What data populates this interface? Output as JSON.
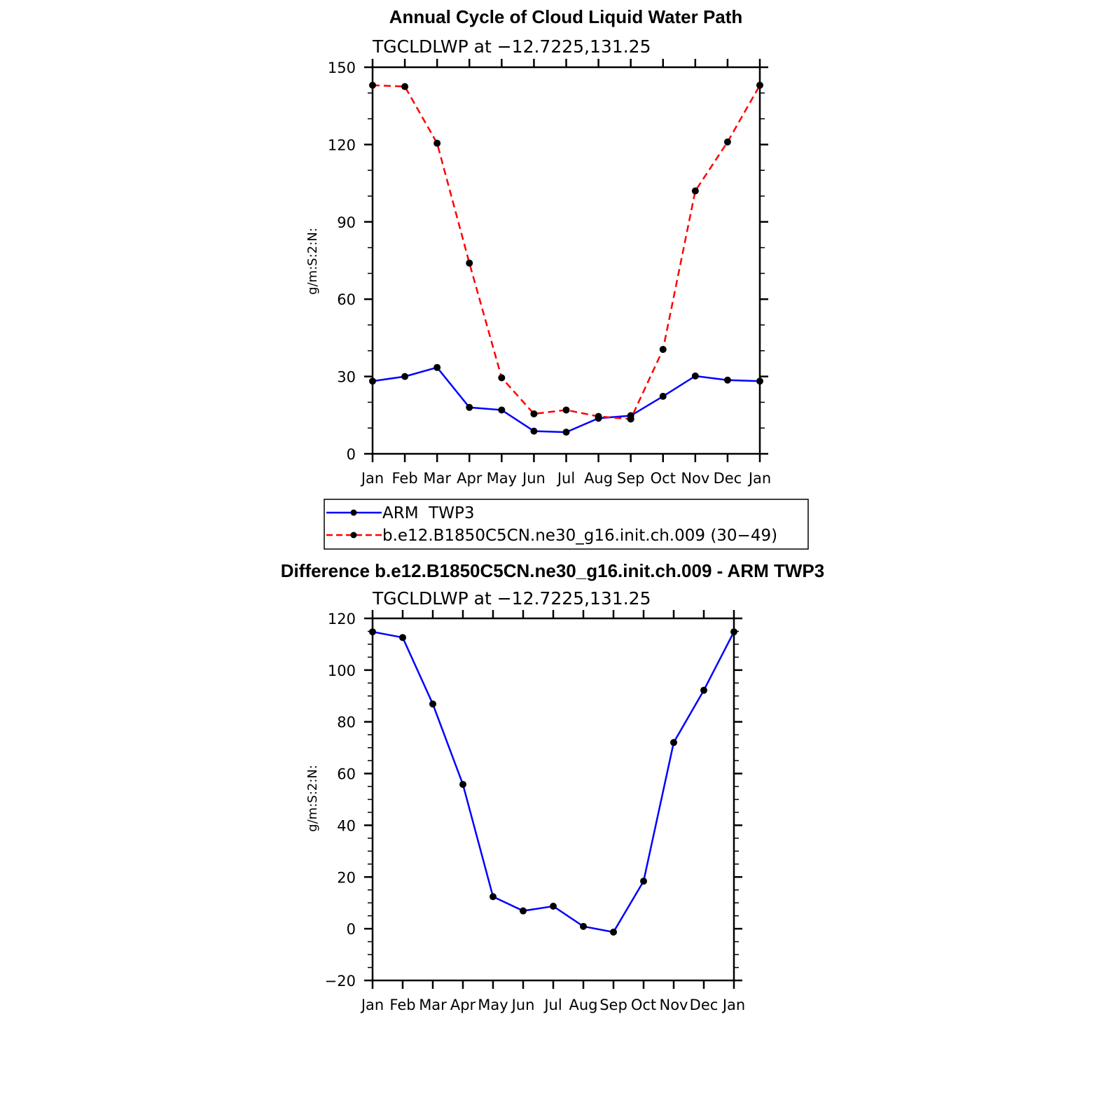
{
  "chart_data": [
    {
      "type": "line",
      "title": "Annual Cycle of Cloud Liquid Water Path",
      "subtitle": "TGCLDLWP  at  −12.7225,131.25",
      "ylabel": "g/m:S:2:N:",
      "xlabel": "",
      "categories": [
        "Jan",
        "Feb",
        "Mar",
        "Apr",
        "May",
        "Jun",
        "Jul",
        "Aug",
        "Sep",
        "Oct",
        "Nov",
        "Dec",
        "Jan"
      ],
      "ylim": [
        0,
        150
      ],
      "yticks": [
        0,
        30,
        60,
        90,
        120,
        150
      ],
      "ytick_labels": [
        "0",
        "30",
        "60",
        "90",
        "120",
        "150"
      ],
      "legend_placement": "below",
      "series": [
        {
          "name": "ARM  TWP3",
          "color": "#0000ff",
          "dash": "solid",
          "values": [
            28.2,
            30.0,
            33.5,
            18.0,
            17.0,
            8.8,
            8.4,
            13.8,
            14.8,
            22.3,
            30.2,
            28.6,
            28.2
          ]
        },
        {
          "name": "b.e12.B1850C5CN.ne30_g16.init.ch.009 (30−49)",
          "color": "#ff0000",
          "dash": "dashed",
          "values": [
            143.0,
            142.5,
            120.5,
            74.0,
            29.5,
            15.5,
            17.0,
            14.5,
            13.5,
            40.5,
            102.0,
            121.0,
            143.0
          ]
        }
      ]
    },
    {
      "type": "line",
      "title": "Difference b.e12.B1850C5CN.ne30_g16.init.ch.009 - ARM TWP3",
      "subtitle": "TGCLDLWP  at  −12.7225,131.25",
      "ylabel": "g/m:S:2:N:",
      "xlabel": "",
      "categories": [
        "Jan",
        "Feb",
        "Mar",
        "Apr",
        "May",
        "Jun",
        "Jul",
        "Aug",
        "Sep",
        "Oct",
        "Nov",
        "Dec",
        "Jan"
      ],
      "ylim": [
        -20,
        120
      ],
      "yticks": [
        -20,
        0,
        20,
        40,
        60,
        80,
        100,
        120
      ],
      "ytick_labels": [
        "−20",
        "0",
        "20",
        "40",
        "60",
        "80",
        "100",
        "120"
      ],
      "series": [
        {
          "name": "",
          "color": "#0000ff",
          "dash": "solid",
          "values": [
            114.8,
            112.6,
            86.9,
            55.8,
            12.4,
            6.9,
            8.7,
            0.9,
            -1.3,
            18.4,
            72.0,
            92.2,
            114.8
          ]
        }
      ]
    }
  ]
}
